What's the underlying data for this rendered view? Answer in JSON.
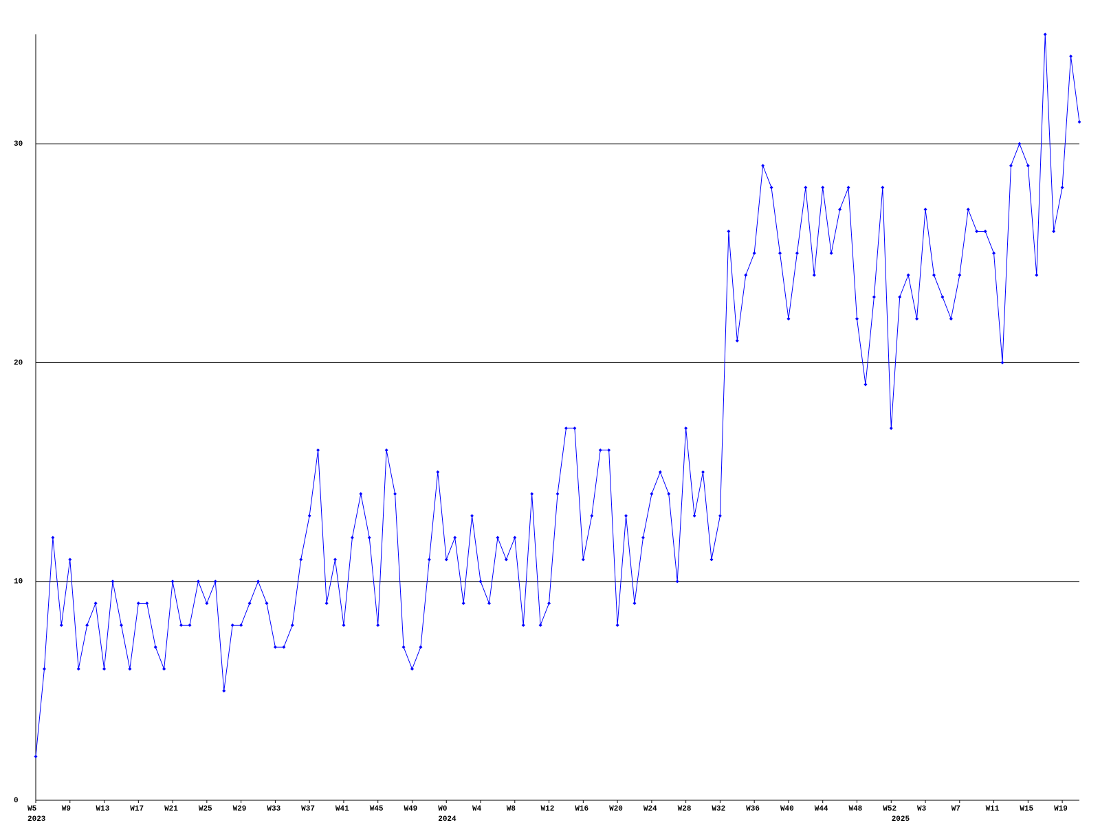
{
  "chart_data": {
    "type": "line",
    "categories": [
      "W5",
      null,
      null,
      null,
      "W9",
      null,
      null,
      null,
      "W13",
      null,
      null,
      null,
      "W17",
      null,
      null,
      null,
      "W21",
      null,
      null,
      null,
      "W25",
      null,
      null,
      null,
      "W29",
      null,
      null,
      null,
      "W33",
      null,
      null,
      null,
      "W37",
      null,
      null,
      null,
      "W41",
      null,
      null,
      null,
      "W45",
      null,
      null,
      null,
      "W49",
      null,
      null,
      null,
      "W0",
      null,
      null,
      null,
      "W4",
      null,
      null,
      null,
      "W8",
      null,
      null,
      null,
      "W12",
      null,
      null,
      null,
      "W16",
      null,
      null,
      null,
      "W20",
      null,
      null,
      null,
      "W24",
      null,
      null,
      null,
      "W28",
      null,
      null,
      null,
      "W32",
      null,
      null,
      null,
      "W36",
      null,
      null,
      null,
      "W40",
      null,
      null,
      null,
      "W44",
      null,
      null,
      null,
      "W48",
      null,
      null,
      null,
      "W52",
      null,
      null,
      null,
      "W3",
      null,
      null,
      null,
      "W7",
      null,
      null,
      null,
      "W11",
      null,
      null,
      null,
      "W15",
      null,
      null,
      null,
      "W19",
      null,
      null
    ],
    "year_labels": [
      {
        "at": 0,
        "label": "2023"
      },
      {
        "at": 48,
        "label": "2024"
      },
      {
        "at": 101,
        "label": "2025"
      }
    ],
    "color": "#0000ff",
    "values": [
      2,
      6,
      12,
      8,
      11,
      6,
      8,
      9,
      6,
      10,
      8,
      6,
      9,
      9,
      7,
      6,
      10,
      8,
      8,
      10,
      9,
      10,
      5,
      8,
      8,
      9,
      10,
      9,
      7,
      7,
      8,
      11,
      13,
      16,
      9,
      11,
      8,
      12,
      14,
      12,
      8,
      16,
      14,
      7,
      6,
      7,
      11,
      15,
      11,
      12,
      9,
      13,
      10,
      9,
      12,
      11,
      12,
      8,
      14,
      8,
      9,
      14,
      17,
      17,
      11,
      13,
      16,
      16,
      8,
      13,
      9,
      12,
      14,
      15,
      14,
      10,
      17,
      13,
      15,
      11,
      13,
      26,
      21,
      24,
      25,
      29,
      28,
      25,
      22,
      25,
      28,
      24,
      28,
      25,
      27,
      28,
      22,
      19,
      23,
      28,
      17,
      23,
      24,
      22,
      27,
      24,
      23,
      22,
      24,
      27,
      26,
      26,
      25,
      20,
      29,
      30,
      29,
      24,
      35,
      26,
      28,
      34,
      31
    ],
    "ylim": [
      0,
      35
    ],
    "yticks": [
      0,
      10,
      20,
      30
    ],
    "grid": true
  }
}
